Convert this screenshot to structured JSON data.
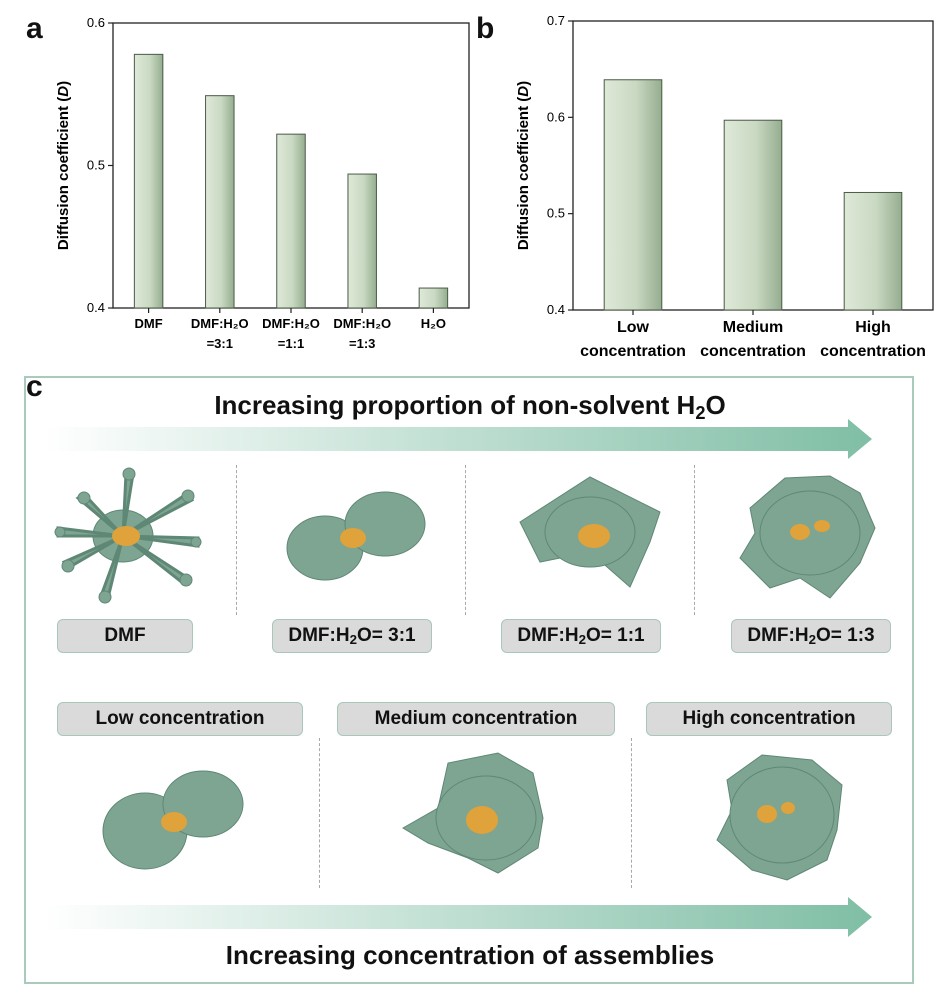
{
  "chart_data": [
    {
      "panel": "a",
      "type": "bar",
      "categories": [
        "DMF",
        "DMF:H2O =3:1",
        "DMF:H2O =1:1",
        "DMF:H2O =1:3",
        "H2O"
      ],
      "category_lines": [
        [
          "DMF"
        ],
        [
          "DMF:H₂O",
          "=3:1"
        ],
        [
          "DMF:H₂O",
          "=1:1"
        ],
        [
          "DMF:H₂O",
          "=1:3"
        ],
        [
          "H₂O"
        ]
      ],
      "values": [
        0.578,
        0.549,
        0.522,
        0.494,
        0.414
      ],
      "ylabel": "Diffusion coefficient (D)",
      "ylabel_main": "Diffusion coefficient (",
      "ylabel_italic": "D",
      "ylabel_close": ")",
      "ylim": [
        0.4,
        0.6
      ],
      "yticks": [
        0.4,
        0.5,
        0.6
      ],
      "ytick_labels": [
        "0.4",
        "0.5",
        "0.6"
      ]
    },
    {
      "panel": "b",
      "type": "bar",
      "categories": [
        "Low concentration",
        "Medium concentration",
        "High concentration"
      ],
      "category_lines": [
        [
          "Low",
          "concentration"
        ],
        [
          "Medium",
          "concentration"
        ],
        [
          "High",
          "concentration"
        ]
      ],
      "values": [
        0.639,
        0.597,
        0.522
      ],
      "ylabel": "Diffusion coefficient (D)",
      "ylabel_main": "Diffusion coefficient (",
      "ylabel_italic": "D",
      "ylabel_close": ")",
      "ylim": [
        0.4,
        0.7
      ],
      "yticks": [
        0.4,
        0.5,
        0.6,
        0.7
      ],
      "ytick_labels": [
        "0.4",
        "0.5",
        "0.6",
        "0.7"
      ]
    }
  ],
  "panels": {
    "a": "a",
    "b": "b",
    "c": "c"
  },
  "diagram": {
    "top_title_pre": "Increasing proportion of non-solvent H",
    "top_title_sub": "2",
    "top_title_post": "O",
    "bottom_title": "Increasing concentration of assemblies",
    "top_labels": [
      {
        "pre": "DMF",
        "sub": "",
        "post": ""
      },
      {
        "pre": "DMF:H",
        "sub": "2",
        "post": "O= 3:1"
      },
      {
        "pre": "DMF:H",
        "sub": "2",
        "post": "O= 1:1"
      },
      {
        "pre": "DMF:H",
        "sub": "2",
        "post": "O= 1:3"
      }
    ],
    "bottom_labels": [
      "Low concentration",
      "Medium concentration",
      "High concentration"
    ]
  },
  "colors": {
    "bar_light": "#dfe9d8",
    "bar_dark": "#95ad8f",
    "bar_stroke": "#4a5a48",
    "frame": "#a9cbb9",
    "arrow_start": "#ffffff",
    "arrow_end": "#7fbea5",
    "molecule": "#7da592",
    "molecule_dark": "#5f8776",
    "core": "#e0a23a"
  }
}
